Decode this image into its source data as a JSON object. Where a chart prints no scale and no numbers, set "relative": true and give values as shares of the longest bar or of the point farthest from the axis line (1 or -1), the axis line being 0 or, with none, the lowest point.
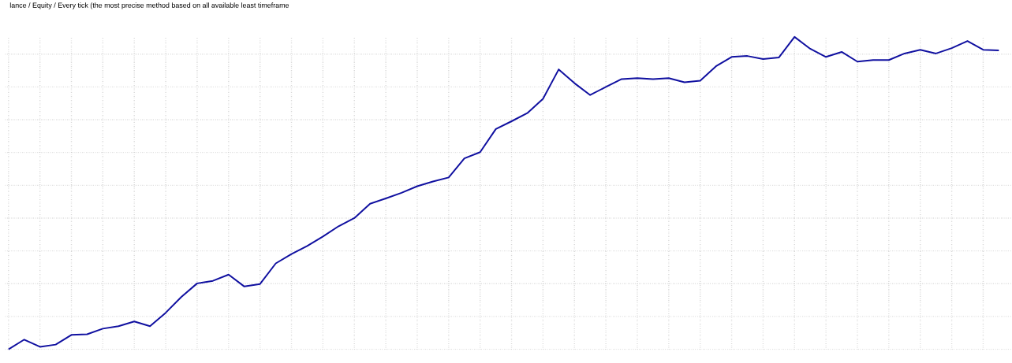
{
  "chart_data": {
    "type": "line",
    "title": "lance / Equity / Every tick (the most precise method based on all available least timeframe",
    "relative": true,
    "grid": true,
    "categories": [
      null,
      null,
      null,
      null,
      null,
      null,
      null,
      null,
      null,
      null,
      null,
      null,
      null,
      null,
      null,
      null,
      null,
      null,
      null,
      null,
      null,
      null,
      null,
      null,
      null,
      null,
      null,
      null,
      null,
      null,
      null,
      null,
      null,
      null,
      null,
      null,
      null,
      null,
      null,
      null,
      null,
      null,
      null,
      null,
      null,
      null,
      null,
      null,
      null,
      null,
      null,
      null,
      null,
      null,
      null,
      null,
      null,
      null,
      null,
      null,
      null,
      null,
      null,
      null
    ],
    "series": [
      {
        "color": "#1010a0",
        "values": [
          0,
          0.031,
          0.008,
          0.015,
          0.046,
          0.048,
          0.066,
          0.074,
          0.089,
          0.074,
          0.117,
          0.168,
          0.211,
          0.219,
          0.239,
          0.201,
          0.209,
          0.275,
          0.305,
          0.331,
          0.361,
          0.394,
          0.42,
          0.466,
          0.483,
          0.501,
          0.522,
          0.537,
          0.55,
          0.611,
          0.631,
          0.705,
          0.73,
          0.756,
          0.802,
          0.896,
          0.852,
          0.814,
          0.84,
          0.865,
          0.868,
          0.865,
          0.868,
          0.855,
          0.86,
          0.906,
          0.936,
          0.939,
          0.929,
          0.934,
          1,
          0.962,
          0.936,
          0.952,
          0.921,
          0.926,
          0.926,
          0.947,
          0.959,
          0.947,
          0.964,
          0.987,
          0.959,
          0.957
        ]
      }
    ]
  }
}
